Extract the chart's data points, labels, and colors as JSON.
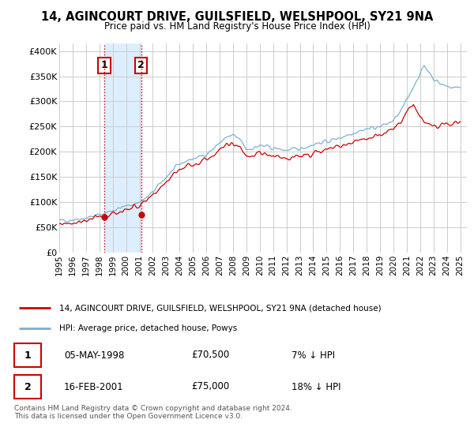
{
  "title": "14, AGINCOURT DRIVE, GUILSFIELD, WELSHPOOL, SY21 9NA",
  "subtitle": "Price paid vs. HM Land Registry's House Price Index (HPI)",
  "ylabel_ticks": [
    "£0",
    "£50K",
    "£100K",
    "£150K",
    "£200K",
    "£250K",
    "£300K",
    "£350K",
    "£400K"
  ],
  "ytick_values": [
    0,
    50000,
    100000,
    150000,
    200000,
    250000,
    300000,
    350000,
    400000
  ],
  "ylim": [
    0,
    415000
  ],
  "xlim_start": 1995.0,
  "xlim_end": 2025.5,
  "xtick_years": [
    1995,
    1996,
    1997,
    1998,
    1999,
    2000,
    2001,
    2002,
    2003,
    2004,
    2005,
    2006,
    2007,
    2008,
    2009,
    2010,
    2011,
    2012,
    2013,
    2014,
    2015,
    2016,
    2017,
    2018,
    2019,
    2020,
    2021,
    2022,
    2023,
    2024,
    2025
  ],
  "hpi_color": "#7ab0d4",
  "price_paid_color": "#cc0000",
  "shade_color": "#ddeeff",
  "transaction1_date": 1998.35,
  "transaction1_price": 70500,
  "transaction2_date": 2001.12,
  "transaction2_price": 75000,
  "transaction1_date_str": "05-MAY-1998",
  "transaction1_price_str": "£70,500",
  "transaction1_hpi_str": "7% ↓ HPI",
  "transaction2_date_str": "16-FEB-2001",
  "transaction2_price_str": "£75,000",
  "transaction2_hpi_str": "18% ↓ HPI",
  "legend_line1": "14, AGINCOURT DRIVE, GUILSFIELD, WELSHPOOL, SY21 9NA (detached house)",
  "legend_line2": "HPI: Average price, detached house, Powys",
  "footer": "Contains HM Land Registry data © Crown copyright and database right 2024.\nThis data is licensed under the Open Government Licence v3.0.",
  "background_color": "#ffffff",
  "grid_color": "#cccccc",
  "vgrid_color": "#cccccc"
}
